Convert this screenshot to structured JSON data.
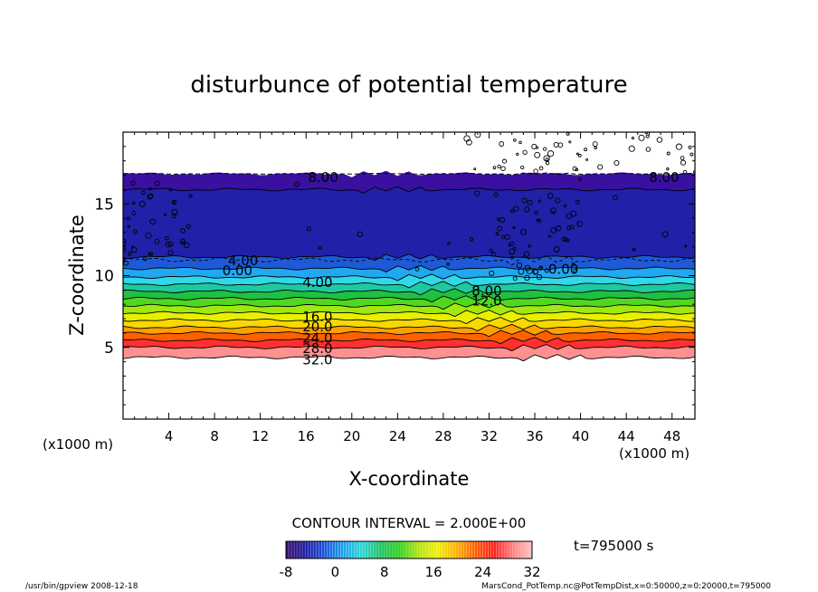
{
  "chart_data": {
    "type": "contour",
    "title": "disturbunce of potential temperature",
    "xlabel": "X-coordinate",
    "ylabel": "Z-coordinate",
    "x_unit_left": "(x1000 m)",
    "x_unit_right": "(x1000 m)",
    "xlim": [
      0,
      50
    ],
    "ylim": [
      0,
      20
    ],
    "x_ticks": [
      4,
      8,
      12,
      16,
      20,
      24,
      28,
      32,
      36,
      40,
      44,
      48
    ],
    "y_ticks": [
      5,
      10,
      15
    ],
    "contour_interval_text": "CONTOUR INTERVAL = 2.000E+00",
    "time_text": "t=795000 s",
    "colorbar": {
      "min": -8,
      "max": 32,
      "ticks": [
        -8,
        0,
        8,
        16,
        24,
        32
      ],
      "colors": [
        "#3a0a6e",
        "#1a1a9e",
        "#1e50d8",
        "#1fa0ee",
        "#28d8d8",
        "#20c060",
        "#30d020",
        "#b0e010",
        "#f0f000",
        "#ffb000",
        "#ff6000",
        "#ff2020",
        "#ff8080",
        "#ffc0c0"
      ]
    },
    "contour_labels": [
      {
        "text": "8.00",
        "x": 17.5,
        "z": 16.8
      },
      {
        "text": "8.00",
        "x": 47.3,
        "z": 16.8
      },
      {
        "text": "4.00",
        "x": 10.5,
        "z": 11.0
      },
      {
        "text": "0.00",
        "x": 10.0,
        "z": 10.3
      },
      {
        "text": "0.00",
        "x": 38.5,
        "z": 10.4
      },
      {
        "text": "4.00",
        "x": 17.0,
        "z": 9.5
      },
      {
        "text": "8.00",
        "x": 31.8,
        "z": 8.9
      },
      {
        "text": "12.0",
        "x": 31.8,
        "z": 8.2
      },
      {
        "text": "16.0",
        "x": 17.0,
        "z": 7.1
      },
      {
        "text": "20.0",
        "x": 17.0,
        "z": 6.4
      },
      {
        "text": "24.0",
        "x": 17.0,
        "z": 5.6
      },
      {
        "text": "28.0",
        "x": 17.0,
        "z": 4.9
      },
      {
        "text": "32.0",
        "x": 17.0,
        "z": 4.1
      }
    ],
    "bands": [
      {
        "z0": 4.3,
        "z1": 5.0,
        "color": "#ff9090"
      },
      {
        "z0": 5.0,
        "z1": 5.5,
        "color": "#ff3030"
      },
      {
        "z0": 5.5,
        "z1": 6.0,
        "color": "#ff6000"
      },
      {
        "z0": 6.0,
        "z1": 6.4,
        "color": "#ffa000"
      },
      {
        "z0": 6.4,
        "z1": 6.9,
        "color": "#f8d800"
      },
      {
        "z0": 6.9,
        "z1": 7.4,
        "color": "#e8f000"
      },
      {
        "z0": 7.4,
        "z1": 7.9,
        "color": "#a0e810"
      },
      {
        "z0": 7.9,
        "z1": 8.4,
        "color": "#50d820"
      },
      {
        "z0": 8.4,
        "z1": 8.9,
        "color": "#20c040"
      },
      {
        "z0": 8.9,
        "z1": 9.4,
        "color": "#20c8a0"
      },
      {
        "z0": 9.4,
        "z1": 9.9,
        "color": "#30d8e8"
      },
      {
        "z0": 9.9,
        "z1": 10.5,
        "color": "#20a8f0"
      },
      {
        "z0": 10.5,
        "z1": 11.3,
        "color": "#1e5ad8"
      },
      {
        "z0": 11.3,
        "z1": 16.0,
        "color": "#2020a8"
      },
      {
        "z0": 16.0,
        "z1": 17.1,
        "color": "#3a10a0"
      }
    ]
  },
  "footer": {
    "left": "/usr/bin/gpview   2008-12-18",
    "right": "MarsCond_PotTemp.nc@PotTempDist,x=0:50000,z=0:20000,t=795000"
  }
}
